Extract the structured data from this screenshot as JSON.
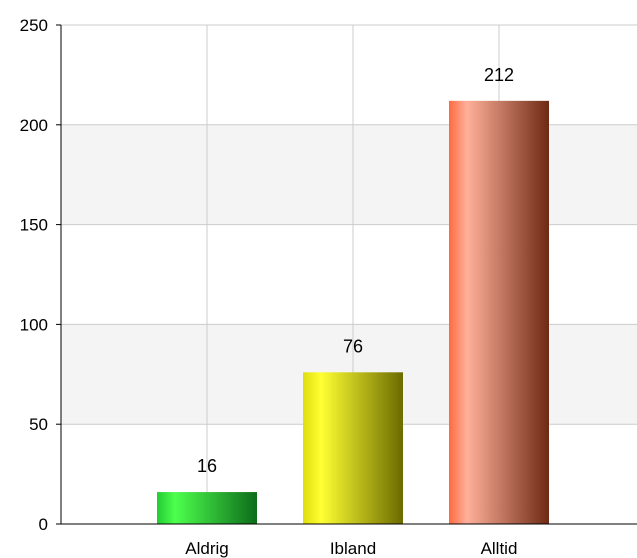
{
  "chart_data": {
    "type": "bar",
    "categories": [
      "Aldrig",
      "Ibland",
      "Alltid"
    ],
    "values": [
      16,
      76,
      212
    ],
    "data_labels": [
      "16",
      "76",
      "212"
    ],
    "ylim": [
      0,
      250
    ],
    "yticks": [
      0,
      50,
      100,
      150,
      200,
      250
    ],
    "ytick_labels": [
      "0",
      "50",
      "100",
      "150",
      "200",
      "250"
    ],
    "grid": true,
    "legend": "none",
    "bar_colors": [
      {
        "light": "#4dff4d",
        "dark": "#0d6b1a",
        "base": "#22cc33"
      },
      {
        "light": "#ffff33",
        "dark": "#6b6b00",
        "base": "#dddd10"
      },
      {
        "light": "#ffb09a",
        "dark": "#6e2a14",
        "base": "#ff6a40"
      }
    ],
    "band_color": "#f4f4f4",
    "grid_color": "#cccccc",
    "axis_color": "#000000"
  }
}
